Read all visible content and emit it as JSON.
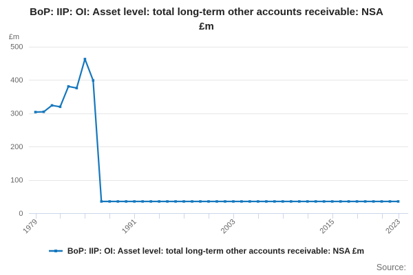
{
  "colors": {
    "line": "#1577bd",
    "grid": "#e6e6e6",
    "axis": "#ccd6eb",
    "axis_label": "#666666",
    "title_text": "#232323",
    "legend_text": "#222222",
    "source_text": "#6f6f6f"
  },
  "chart_data": {
    "type": "line",
    "title": "BoP: IIP: OI: Asset level: total long-term other accounts receivable: NSA £m",
    "unit_label": "£m",
    "source_label": "Source:",
    "legend_label": "BoP: IIP: OI: Asset level: total long-term other accounts receivable: NSA £m",
    "legend_position": "bottom",
    "grid": true,
    "ylim": [
      0,
      500
    ],
    "yticks": [
      0,
      100,
      200,
      300,
      400,
      500
    ],
    "x_start_year": 1979,
    "x_end_year": 2023,
    "xtick_step_years": 3,
    "xtick_labeled_years": [
      1979,
      1991,
      2003,
      2015,
      2023
    ],
    "x": [
      1979,
      1980,
      1981,
      1982,
      1983,
      1984,
      1985,
      1986,
      1987,
      1988,
      1989,
      1990,
      1991,
      1992,
      1993,
      1994,
      1995,
      1996,
      1997,
      1998,
      1999,
      2000,
      2001,
      2002,
      2003,
      2004,
      2005,
      2006,
      2007,
      2008,
      2009,
      2010,
      2011,
      2012,
      2013,
      2014,
      2015,
      2016,
      2017,
      2018,
      2019,
      2020,
      2021,
      2022,
      2023
    ],
    "values": [
      303,
      304,
      323,
      319,
      380,
      375,
      462,
      398,
      35,
      35,
      35,
      35,
      35,
      35,
      35,
      35,
      35,
      35,
      35,
      35,
      35,
      35,
      35,
      35,
      35,
      35,
      35,
      35,
      35,
      35,
      35,
      35,
      35,
      35,
      35,
      35,
      35,
      35,
      35,
      35,
      35,
      35,
      35,
      35,
      35
    ]
  }
}
